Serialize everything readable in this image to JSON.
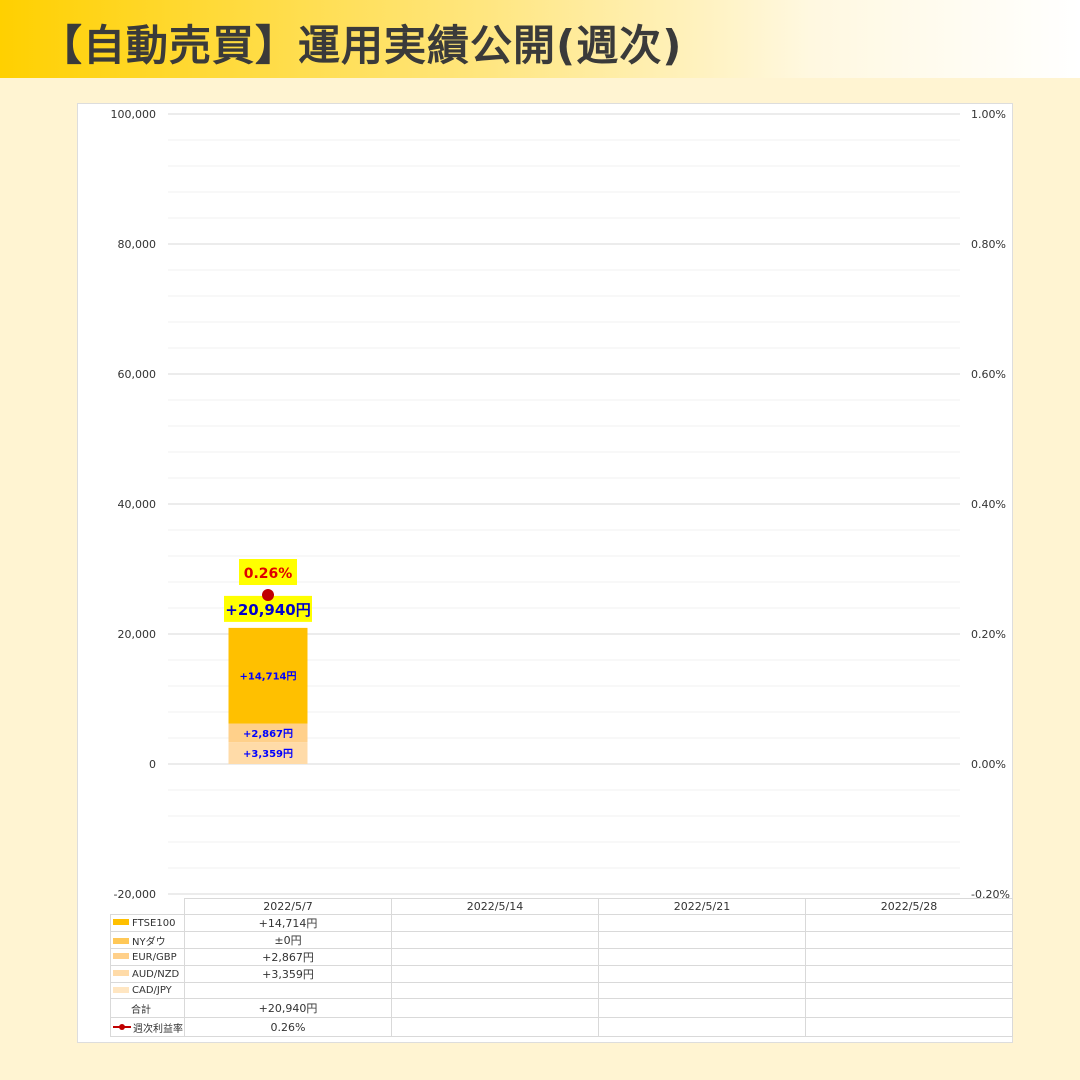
{
  "header": {
    "title": "【自動売買】運用実績公開(週次)"
  },
  "chart_data": {
    "type": "bar",
    "stacked": true,
    "categories": [
      "2022/5/7",
      "2022/5/14",
      "2022/5/21",
      "2022/5/28"
    ],
    "ylim": [
      -20000,
      100000
    ],
    "y2lim": [
      -0.2,
      1.0
    ],
    "y_ticks": [
      "100,000",
      "80,000",
      "60,000",
      "40,000",
      "20,000",
      "0",
      "-20,000"
    ],
    "y2_ticks": [
      "1.00%",
      "0.80%",
      "0.60%",
      "0.40%",
      "0.20%",
      "0.00%",
      "-0.20%"
    ],
    "grid": true,
    "series": [
      {
        "name": "AUD/NZD",
        "color": "#ffdba8",
        "values": [
          3359,
          null,
          null,
          null
        ],
        "labels": [
          "+3,359円",
          "",
          "",
          ""
        ]
      },
      {
        "name": "EUR/GBP",
        "color": "#ffd08a",
        "values": [
          2867,
          null,
          null,
          null
        ],
        "labels": [
          "+2,867円",
          "",
          "",
          ""
        ]
      },
      {
        "name": "NYダウ",
        "color": "#ffc857",
        "values": [
          0,
          null,
          null,
          null
        ],
        "labels": [
          "±0円",
          "",
          "",
          ""
        ]
      },
      {
        "name": "FTSE100",
        "color": "#ffc000",
        "values": [
          14714,
          null,
          null,
          null
        ],
        "labels": [
          "+14,714円",
          "",
          "",
          ""
        ]
      },
      {
        "name": "CAD/JPY",
        "color": "#ffe6c2",
        "values": [
          null,
          null,
          null,
          null
        ],
        "labels": [
          "",
          "",
          "",
          ""
        ]
      }
    ],
    "total": {
      "name": "合計",
      "values": [
        20940,
        null,
        null,
        null
      ],
      "labels": [
        "+20,940円",
        "",
        "",
        ""
      ]
    },
    "rate": {
      "name": "週次利益率",
      "color": "#c00000",
      "values": [
        0.26,
        null,
        null,
        null
      ],
      "labels": [
        "0.26%",
        "",
        "",
        ""
      ]
    }
  },
  "table": {
    "rows": [
      {
        "name": "FTSE100",
        "color": "#ffc000",
        "cells": [
          "+14,714円",
          "",
          "",
          ""
        ]
      },
      {
        "name": "NYダウ",
        "color": "#ffc857",
        "cells": [
          "±0円",
          "",
          "",
          ""
        ]
      },
      {
        "name": "EUR/GBP",
        "color": "#ffd08a",
        "cells": [
          "+2,867円",
          "",
          "",
          ""
        ]
      },
      {
        "name": "AUD/NZD",
        "color": "#ffdba8",
        "cells": [
          "+3,359円",
          "",
          "",
          ""
        ]
      },
      {
        "name": "CAD/JPY",
        "color": "#ffe6c2",
        "cells": [
          "",
          "",
          "",
          ""
        ]
      },
      {
        "name": "合計",
        "color": "",
        "cells": [
          "+20,940円",
          "",
          "",
          ""
        ]
      },
      {
        "name": "週次利益率",
        "color": "#c00000",
        "cells": [
          "0.26%",
          "",
          "",
          ""
        ]
      }
    ]
  }
}
